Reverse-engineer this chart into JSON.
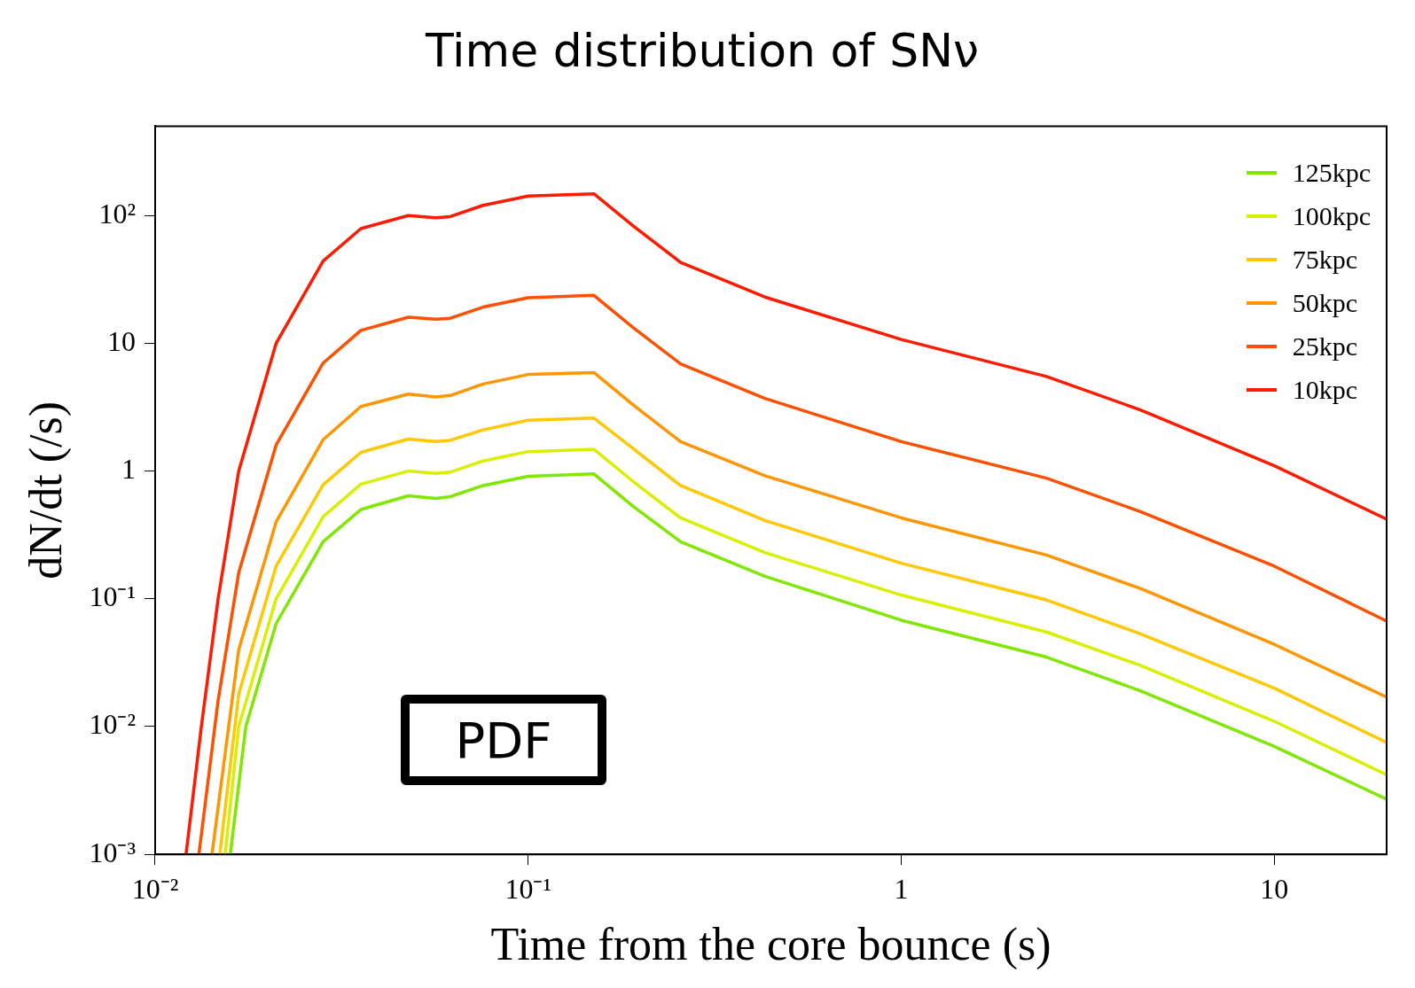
{
  "chart_data": {
    "type": "line",
    "title": "Time distribution of SNν",
    "xlabel": "Time from the core bounce (s)",
    "ylabel": "dN/dt (/s)",
    "log": "xy",
    "legend": "top right",
    "annotations": [
      "PDF"
    ],
    "xlim": [
      0.01,
      20
    ],
    "ylim": [
      0.001,
      500
    ],
    "xticks": [
      {
        "value": 0.01,
        "label": "10⁻²"
      },
      {
        "value": 0.1,
        "label": "10⁻¹"
      },
      1,
      10
    ],
    "yticks": [
      {
        "value": 0.001,
        "label": "10⁻³"
      },
      {
        "value": 0.01,
        "label": "10⁻²"
      },
      {
        "value": 0.1,
        "label": "10⁻¹"
      },
      1,
      10,
      {
        "value": 100,
        "label": "10²"
      }
    ],
    "series": [
      {
        "name": "125kpc",
        "color": "#80e800",
        "x": [
          0.0159,
          0.0175,
          0.0211,
          0.0282,
          0.0356,
          0.0477,
          0.0565,
          0.0618,
          0.0757,
          0.1,
          0.15,
          0.191,
          0.256,
          0.431,
          1,
          2.45,
          4.39,
          10,
          20
        ],
        "values": [
          0.001,
          0.01,
          0.064,
          0.28,
          0.5,
          0.64,
          0.61,
          0.63,
          0.77,
          0.91,
          0.95,
          0.53,
          0.28,
          0.15,
          0.068,
          0.035,
          0.019,
          0.007,
          0.0027
        ]
      },
      {
        "name": "100kpc",
        "color": "#d8f000",
        "x": [
          0.0154,
          0.01675,
          0.0211,
          0.0282,
          0.0356,
          0.0477,
          0.0565,
          0.0618,
          0.0757,
          0.1,
          0.15,
          0.191,
          0.256,
          0.431,
          1,
          2.45,
          4.39,
          10,
          20
        ],
        "values": [
          0.001,
          0.01,
          0.1,
          0.44,
          0.79,
          1,
          0.96,
          0.98,
          1.2,
          1.42,
          1.48,
          0.83,
          0.43,
          0.23,
          0.107,
          0.055,
          0.03,
          0.011,
          0.0042
        ]
      },
      {
        "name": "75kpc",
        "color": "#ffc800",
        "x": [
          0.0149,
          0.01675,
          0.0211,
          0.0282,
          0.0356,
          0.0477,
          0.0565,
          0.0618,
          0.0757,
          0.1,
          0.15,
          0.191,
          0.256,
          0.431,
          1,
          2.45,
          4.39,
          10,
          20
        ],
        "values": [
          0.001,
          0.018,
          0.18,
          0.78,
          1.4,
          1.78,
          1.7,
          1.74,
          2.1,
          2.5,
          2.6,
          1.5,
          0.77,
          0.41,
          0.19,
          0.098,
          0.053,
          0.02,
          0.0075
        ]
      },
      {
        "name": "50kpc",
        "color": "#ff9600",
        "x": [
          0.0142,
          0.01675,
          0.0211,
          0.0282,
          0.0356,
          0.0477,
          0.0565,
          0.0618,
          0.0757,
          0.1,
          0.15,
          0.191,
          0.256,
          0.431,
          1,
          2.45,
          4.39,
          10,
          20
        ],
        "values": [
          0.001,
          0.04,
          0.4,
          1.76,
          3.2,
          4,
          3.8,
          3.9,
          4.8,
          5.7,
          5.9,
          3.3,
          1.7,
          0.92,
          0.43,
          0.22,
          0.12,
          0.044,
          0.017
        ]
      },
      {
        "name": "25kpc",
        "color": "#ff5000",
        "x": [
          0.0131,
          0.01475,
          0.01675,
          0.0211,
          0.0282,
          0.0356,
          0.0477,
          0.0565,
          0.0618,
          0.0757,
          0.1,
          0.15,
          0.191,
          0.256,
          0.431,
          1,
          2.45,
          4.39,
          10,
          20
        ],
        "values": [
          0.001,
          0.016,
          0.16,
          1.6,
          7,
          12.6,
          16,
          15.4,
          15.7,
          19.2,
          22.7,
          23.7,
          13.3,
          6.9,
          3.7,
          1.7,
          0.88,
          0.48,
          0.18,
          0.067
        ]
      },
      {
        "name": "10kpc",
        "color": "#ff1a00",
        "x": [
          0.0121,
          0.0133,
          0.01475,
          0.01675,
          0.0211,
          0.0282,
          0.0356,
          0.0477,
          0.0565,
          0.0618,
          0.0757,
          0.1,
          0.15,
          0.191,
          0.256,
          0.431,
          1,
          2.45,
          4.39,
          10,
          20
        ],
        "values": [
          0.001,
          0.01,
          0.1,
          1,
          10,
          44,
          79,
          100,
          96,
          98,
          120,
          142,
          148,
          83,
          43,
          23,
          10.7,
          5.5,
          3,
          1.1,
          0.42
        ]
      }
    ]
  }
}
